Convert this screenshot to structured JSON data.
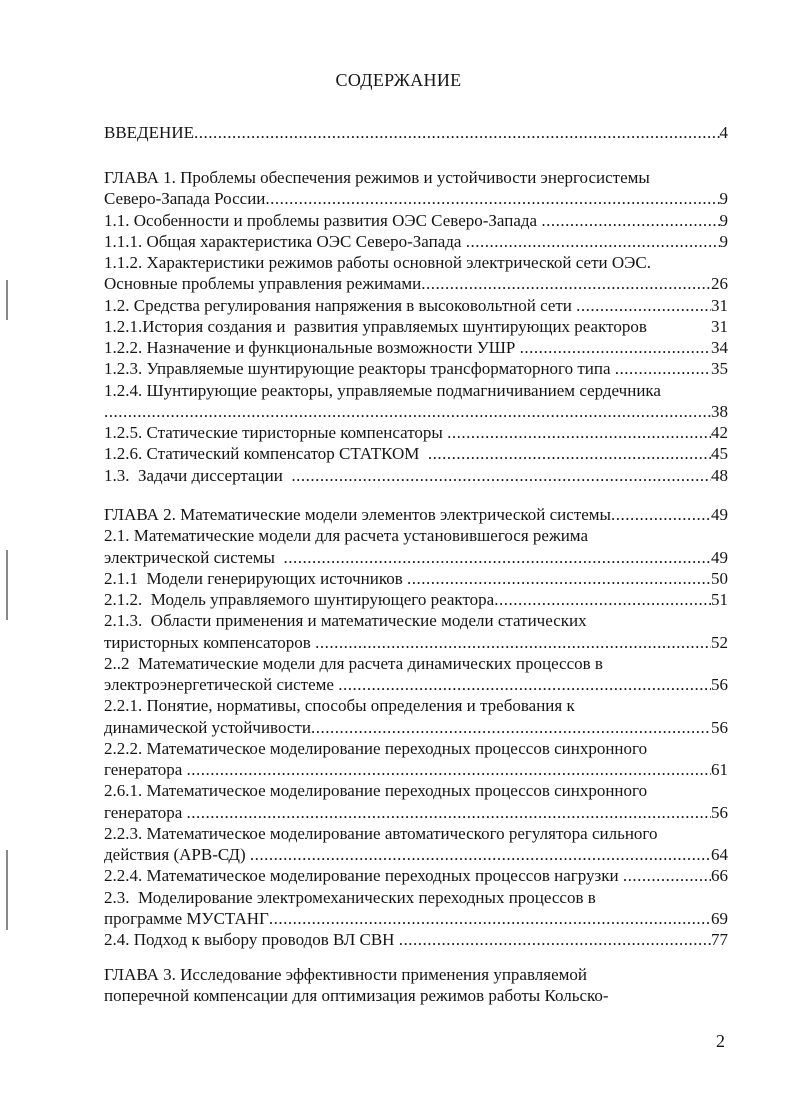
{
  "title": "СОДЕРЖАНИЕ",
  "intro": [
    {
      "lines": [
        "ВВЕДЕНИЕ"
      ],
      "page": "4"
    }
  ],
  "ch1": [
    {
      "lines": [
        "ГЛАВА 1. Проблемы обеспечения режимов и устойчивости энергосистемы",
        "Северо-Запада России"
      ],
      "page": "9"
    },
    {
      "lines": [
        "1.1. Особенности и проблемы развития ОЭС Северо-Запада "
      ],
      "page": "9"
    },
    {
      "lines": [
        "1.1.1. Общая характеристика ОЭС Северо-Запада "
      ],
      "page": "9"
    },
    {
      "lines": [
        "1.1.2. Характеристики режимов работы основной электрической сети ОЭС.",
        "Основные проблемы управления режимами"
      ],
      "page": "26"
    },
    {
      "lines": [
        "1.2. Средства регулирования напряжения в высоковольтной сети "
      ],
      "page": "31"
    },
    {
      "lines": [
        "1.2.1.История создания и  развития управляемых шунтирующих реакторов "
      ],
      "page": "31",
      "no_leader": true
    },
    {
      "lines": [
        "1.2.2. Назначение и функциональные возможности УШР "
      ],
      "page": "34"
    },
    {
      "lines": [
        "1.2.3. Управляемые шунтирующие реакторы трансформаторного типа "
      ],
      "page": "35"
    },
    {
      "lines": [
        "1.2.4. Шунтирующие реакторы, управляемые подмагничиванием сердечника",
        ""
      ],
      "page": "38"
    },
    {
      "lines": [
        "1.2.5. Статические тиристорные компенсаторы "
      ],
      "page": "42"
    },
    {
      "lines": [
        "1.2.6. Статический компенсатор СТАТКОМ  "
      ],
      "page": "45"
    },
    {
      "lines": [
        "1.3.  Задачи диссертации  "
      ],
      "page": "48"
    }
  ],
  "ch2": [
    {
      "lines": [
        "ГЛАВА 2. Математические модели элементов электрической системы"
      ],
      "page": "49"
    },
    {
      "lines": [
        "2.1. Математические модели для расчета установившегося режима",
        "электрической системы  "
      ],
      "page": "49"
    },
    {
      "lines": [
        "2.1.1  Модели генерирующих источников "
      ],
      "page": "50"
    },
    {
      "lines": [
        "2.1.2.  Модель управляемого шунтирующего реактора"
      ],
      "page": "51"
    },
    {
      "lines": [
        "2.1.3.  Области применения и математические модели статических",
        "тиристорных компенсаторов "
      ],
      "page": "52"
    },
    {
      "lines": [
        "2..2  Математические модели для расчета динамических процессов в",
        "электроэнергетической системе "
      ],
      "page": "56"
    },
    {
      "lines": [
        "2.2.1. Понятие, нормативы, способы определения и требования к",
        "динамической устойчивости"
      ],
      "page": "56"
    },
    {
      "lines": [
        "2.2.2. Математическое моделирование переходных процессов синхронного",
        "генератора "
      ],
      "page": "61"
    },
    {
      "lines": [
        "2.6.1. Математическое моделирование переходных процессов синхронного",
        "генератора "
      ],
      "page": "56"
    },
    {
      "lines": [
        "2.2.3. Математическое моделирование автоматического регулятора сильного",
        "действия (АРВ-СД) "
      ],
      "page": "64"
    },
    {
      "lines": [
        "2.2.4. Математическое моделирование переходных процессов нагрузки "
      ],
      "page": "66"
    },
    {
      "lines": [
        "2.3.  Моделирование электромеханических переходных процессов в",
        "программе МУСТАНГ"
      ],
      "page": "69"
    },
    {
      "lines": [
        "2.4. Подход к выбору проводов ВЛ СВН "
      ],
      "page": "77"
    }
  ],
  "ch3": [
    {
      "lines": [
        "ГЛАВА 3. Исследование эффективности применения управляемой",
        "поперечной компенсации для оптимизация режимов работы Кольско-"
      ],
      "page": null
    }
  ],
  "page_number": "2"
}
